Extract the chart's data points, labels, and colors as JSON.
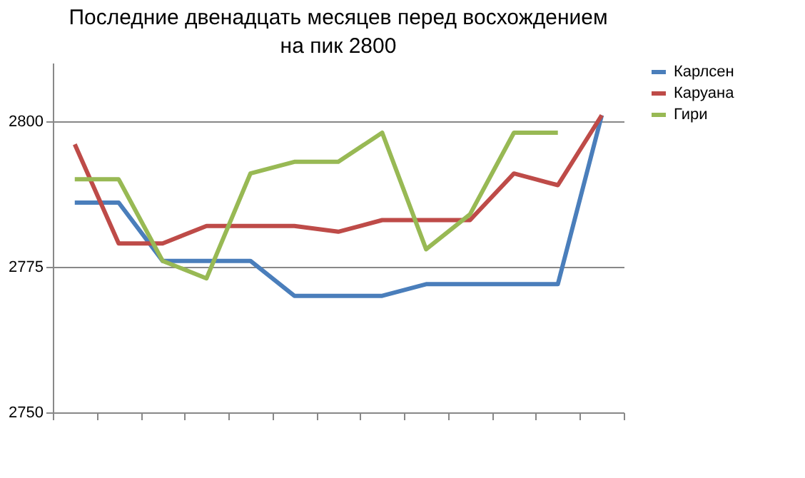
{
  "chart_data": {
    "type": "line",
    "title": "Последние двенадцать месяцев перед восхождением на пик 2800",
    "categories": [
      null,
      null,
      null,
      null,
      null,
      null,
      null,
      null,
      null,
      null,
      null,
      null,
      null
    ],
    "series": [
      {
        "name": "Карлсен",
        "color": "#4a7ebb",
        "values": [
          2786,
          2786,
          2776,
          2776,
          2776,
          2770,
          2770,
          2770,
          2772,
          2772,
          2772,
          2772,
          2801
        ]
      },
      {
        "name": "Каруана",
        "color": "#be4b48",
        "values": [
          2796,
          2779,
          2779,
          2782,
          2782,
          2782,
          2781,
          2783,
          2783,
          2783,
          2791,
          2789,
          2801
        ]
      },
      {
        "name": "Гири",
        "color": "#98b954",
        "values": [
          2790,
          2790,
          2776,
          2773,
          2791,
          2793,
          2793,
          2798,
          2778,
          2784,
          2798,
          2798,
          null
        ]
      }
    ],
    "ylim": [
      2750,
      2810
    ],
    "yticks": [
      2750,
      2775,
      2800
    ],
    "grid": "y",
    "legend": "right",
    "marker": "none",
    "line_style": "solid",
    "tick_labels": "y"
  }
}
